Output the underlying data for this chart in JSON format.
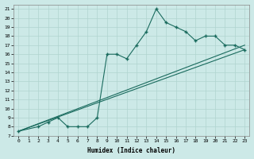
{
  "xlabel": "Humidex (Indice chaleur)",
  "xlim": [
    -0.5,
    23.5
  ],
  "ylim": [
    7,
    21.5
  ],
  "xticks": [
    0,
    1,
    2,
    3,
    4,
    5,
    6,
    7,
    8,
    9,
    10,
    11,
    12,
    13,
    14,
    15,
    16,
    17,
    18,
    19,
    20,
    21,
    22,
    23
  ],
  "yticks": [
    7,
    8,
    9,
    10,
    11,
    12,
    13,
    14,
    15,
    16,
    17,
    18,
    19,
    20,
    21
  ],
  "bg_color": "#cce9e7",
  "line_color": "#1a6b5e",
  "grid_color": "#b0d4d0",
  "lines": [
    {
      "x": [
        0,
        2,
        3,
        4,
        5,
        6,
        7,
        8,
        9,
        10,
        11,
        12,
        13,
        14,
        15,
        16,
        17,
        18,
        19,
        20,
        21,
        22,
        23
      ],
      "y": [
        7.5,
        8,
        8.5,
        9,
        8,
        8,
        8,
        9,
        16,
        16,
        15.5,
        17,
        18.5,
        21,
        19.5,
        19,
        18.5,
        17.5,
        18,
        18,
        17,
        17,
        16.5
      ],
      "has_markers": true
    },
    {
      "x": [
        0,
        23
      ],
      "y": [
        7.5,
        17
      ],
      "has_markers": false
    },
    {
      "x": [
        0,
        23
      ],
      "y": [
        7.5,
        16.5
      ],
      "has_markers": false
    }
  ]
}
